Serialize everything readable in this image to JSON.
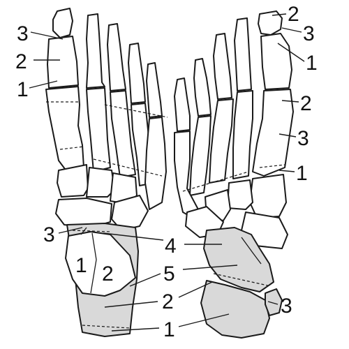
{
  "labels": {
    "left_toe_distal": "3",
    "left_toe_middle": "2",
    "left_toe_proximal": "1",
    "right_toe_distal": "2",
    "right_toe_middle": "3",
    "right_toe_proximal": "1",
    "right_met_base": "2",
    "right_met_shaft": "3",
    "right_met_head": "1",
    "left_hind_upper": "3",
    "left_talus_a": "1",
    "left_talus_b": "2",
    "center_a": "4",
    "center_b": "5",
    "center_c": "2",
    "center_d": "1",
    "right_calc": "3"
  },
  "colors": {
    "shade": "#d9d9d9",
    "line": "#1a1a1a"
  }
}
